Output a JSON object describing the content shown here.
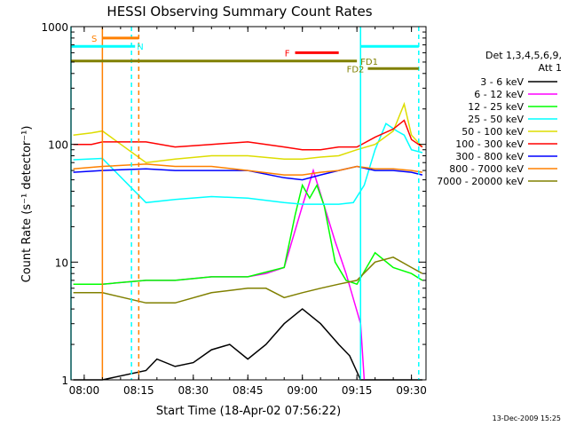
{
  "chart_data": {
    "type": "line",
    "title": "HESSI Observing Summary Count Rates",
    "xlabel": "Start Time (18-Apr-02 07:56:22)",
    "ylabel": "Count Rate (s⁻¹ detector⁻¹)",
    "y_scale": "log",
    "xlim": [
      "07:56:22",
      "09:34:00"
    ],
    "ylim": [
      1,
      1000
    ],
    "x_ticks": [
      "08:00",
      "08:15",
      "08:30",
      "08:45",
      "09:00",
      "09:15",
      "09:30"
    ],
    "y_ticks": [
      "1",
      "10",
      "100",
      "1000"
    ],
    "grid": false,
    "legend_position": "right",
    "legend_title": "Det 1,3,4,5,6,9,",
    "legend_subtitle": "Att 1",
    "footer_date": "13-Dec-2009 15:25",
    "series": [
      {
        "name": "3 - 6 keV",
        "color": "#000000",
        "x": [
          "07:57",
          "08:05",
          "08:17",
          "08:20",
          "08:25",
          "08:30",
          "08:35",
          "08:40",
          "08:45",
          "08:50",
          "08:55",
          "09:00",
          "09:05",
          "09:10",
          "09:13",
          "09:16",
          "09:20",
          "09:25",
          "09:30",
          "09:33"
        ],
        "y": [
          1,
          1,
          1.2,
          1.5,
          1.3,
          1.4,
          1.8,
          2,
          1.5,
          2,
          3,
          4,
          3,
          2,
          1.6,
          1,
          1,
          1,
          1,
          1
        ]
      },
      {
        "name": "6 - 12 keV",
        "color": "#ff00ff",
        "x": [
          "07:57",
          "08:05",
          "08:17",
          "08:25",
          "08:35",
          "08:45",
          "08:50",
          "08:55",
          "09:00",
          "09:03",
          "09:06",
          "09:09",
          "09:12",
          "09:16",
          "09:17"
        ],
        "y": [
          6.5,
          6.5,
          7,
          7,
          7.5,
          7.5,
          8,
          9,
          30,
          60,
          30,
          15,
          8,
          3,
          1
        ]
      },
      {
        "name": "12 - 25 keV",
        "color": "#00ff00",
        "x": [
          "07:57",
          "08:05",
          "08:17",
          "08:25",
          "08:35",
          "08:45",
          "08:55",
          "08:58",
          "09:00",
          "09:02",
          "09:04",
          "09:06",
          "09:09",
          "09:12",
          "09:15",
          "09:20",
          "09:25",
          "09:30",
          "09:33"
        ],
        "y": [
          6.5,
          6.5,
          7,
          7,
          7.5,
          7.5,
          9,
          25,
          45,
          35,
          45,
          30,
          10,
          7,
          6.5,
          12,
          9,
          8,
          7
        ]
      },
      {
        "name": "25 - 50 keV",
        "color": "#00ffff",
        "x": [
          "07:57",
          "08:05",
          "08:17",
          "08:25",
          "08:35",
          "08:45",
          "08:55",
          "09:00",
          "09:05",
          "09:10",
          "09:14",
          "09:17",
          "09:20",
          "09:23",
          "09:26",
          "09:28",
          "09:30",
          "09:33"
        ],
        "y": [
          74,
          76,
          32,
          34,
          36,
          35,
          32,
          31,
          31,
          31,
          32,
          45,
          90,
          150,
          130,
          120,
          90,
          85
        ]
      },
      {
        "name": "50 - 100 keV",
        "color": "#dddd00",
        "x": [
          "07:57",
          "08:02",
          "08:05",
          "08:17",
          "08:25",
          "08:35",
          "08:45",
          "08:55",
          "09:00",
          "09:05",
          "09:10",
          "09:15",
          "09:20",
          "09:25",
          "09:28",
          "09:30",
          "09:33"
        ],
        "y": [
          120,
          125,
          130,
          70,
          75,
          80,
          80,
          75,
          75,
          78,
          80,
          90,
          100,
          130,
          220,
          120,
          95
        ]
      },
      {
        "name": "100 - 300 keV",
        "color": "#ff0000",
        "x": [
          "07:57",
          "08:02",
          "08:05",
          "08:17",
          "08:25",
          "08:35",
          "08:45",
          "08:55",
          "09:00",
          "09:05",
          "09:10",
          "09:15",
          "09:20",
          "09:25",
          "09:28",
          "09:30",
          "09:33"
        ],
        "y": [
          100,
          100,
          105,
          105,
          95,
          100,
          105,
          95,
          90,
          90,
          95,
          95,
          115,
          135,
          160,
          110,
          95
        ]
      },
      {
        "name": "300 - 800 keV",
        "color": "#0000ff",
        "x": [
          "07:57",
          "08:05",
          "08:17",
          "08:25",
          "08:35",
          "08:45",
          "08:55",
          "09:00",
          "09:05",
          "09:10",
          "09:15",
          "09:20",
          "09:25",
          "09:30",
          "09:33"
        ],
        "y": [
          58,
          60,
          62,
          60,
          60,
          60,
          52,
          50,
          55,
          60,
          65,
          60,
          60,
          58,
          55
        ]
      },
      {
        "name": "800 - 7000 keV",
        "color": "#ff8000",
        "x": [
          "07:57",
          "08:05",
          "08:17",
          "08:25",
          "08:35",
          "08:45",
          "08:55",
          "09:00",
          "09:05",
          "09:10",
          "09:15",
          "09:20",
          "09:25",
          "09:30",
          "09:33"
        ],
        "y": [
          62,
          65,
          68,
          65,
          65,
          60,
          55,
          55,
          58,
          60,
          65,
          62,
          62,
          60,
          58
        ]
      },
      {
        "name": "7000 - 20000 keV",
        "color": "#808000",
        "x": [
          "07:57",
          "08:05",
          "08:17",
          "08:25",
          "08:35",
          "08:45",
          "08:50",
          "08:55",
          "09:00",
          "09:05",
          "09:10",
          "09:15",
          "09:20",
          "09:25",
          "09:30",
          "09:33"
        ],
        "y": [
          5.5,
          5.5,
          4.5,
          4.5,
          5.5,
          6,
          6,
          5,
          5.5,
          6,
          6.5,
          7,
          10,
          11,
          9,
          8
        ]
      }
    ],
    "annotations": {
      "vertical_lines": [
        {
          "time": "07:56:22",
          "color": "#00ffff",
          "style": "solid"
        },
        {
          "time": "08:05",
          "color": "#ff8000",
          "style": "solid"
        },
        {
          "time": "08:13",
          "color": "#00ffff",
          "style": "dashed"
        },
        {
          "time": "08:15",
          "color": "#ff8000",
          "style": "dashed"
        },
        {
          "time": "09:16",
          "color": "#00ffff",
          "style": "solid"
        },
        {
          "time": "09:32",
          "color": "#00ffff",
          "style": "dashed"
        }
      ],
      "bars": [
        {
          "label": "S",
          "start": "08:05",
          "end": "08:15",
          "level": 800,
          "color": "#ff8000"
        },
        {
          "label": "",
          "start": "07:56:22",
          "end": "08:13",
          "level": 680,
          "color": "#00ffff"
        },
        {
          "label": "N",
          "start": "08:13",
          "end": "08:14",
          "level": 680,
          "color": "#00ffff"
        },
        {
          "label": "",
          "start": "09:16",
          "end": "09:32",
          "level": 680,
          "color": "#00ffff"
        },
        {
          "label": "F",
          "start": "08:58",
          "end": "09:10",
          "level": 600,
          "color": "#ff0000"
        },
        {
          "label": "FD1",
          "start": "07:56:22",
          "end": "09:15",
          "level": 510,
          "color": "#808000"
        },
        {
          "label": "FD2",
          "start": "09:18",
          "end": "09:32",
          "level": 440,
          "color": "#808000"
        }
      ]
    }
  }
}
